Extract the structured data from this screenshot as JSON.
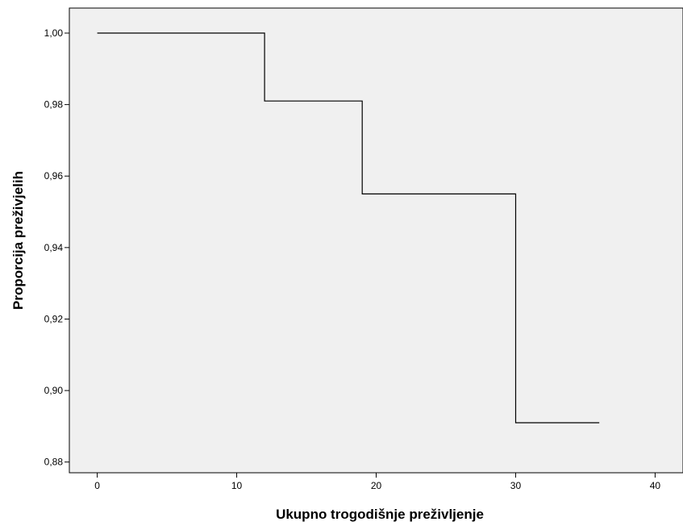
{
  "chart_data": {
    "type": "line",
    "step": true,
    "title": "",
    "xlabel": "Ukupno trogodišnje preživljenje",
    "ylabel": "Proporcija preživjelih",
    "xlim": [
      -2,
      42
    ],
    "ylim": [
      0.877,
      1.007
    ],
    "x_ticks": [
      0,
      10,
      20,
      30,
      40
    ],
    "x_tick_labels": [
      "0",
      "10",
      "20",
      "30",
      "40"
    ],
    "y_ticks": [
      0.88,
      0.9,
      0.92,
      0.94,
      0.96,
      0.98,
      1.0
    ],
    "y_tick_labels": [
      "0,88",
      "0,90",
      "0,92",
      "0,94",
      "0,96",
      "0,98",
      "1,00"
    ],
    "grid": false,
    "plot_background": "#f0f0f0",
    "line_color": "#000000",
    "series": [
      {
        "x": [
          0,
          12,
          12,
          19,
          19,
          30,
          30,
          36
        ],
        "y": [
          1.0,
          1.0,
          0.981,
          0.981,
          0.955,
          0.955,
          0.891,
          0.891
        ]
      }
    ]
  }
}
